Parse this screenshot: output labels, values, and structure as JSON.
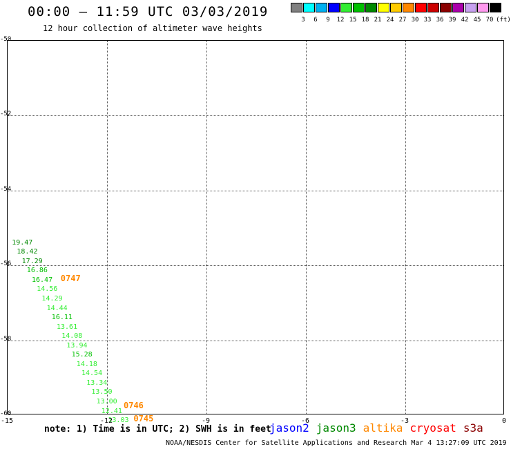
{
  "title": "00:00 – 11:59 UTC 03/03/2019",
  "subtitle": "12 hour collection of altimeter wave heights",
  "scale": {
    "colors": [
      "#808080",
      "#00ffff",
      "#00b0f0",
      "#0000ff",
      "#33ee33",
      "#00c000",
      "#008800",
      "#ffff00",
      "#ffcc00",
      "#ff8800",
      "#ff0000",
      "#cc0000",
      "#8b0000",
      "#aa00aa",
      "#c7a0f0",
      "#ff99ee",
      "#000000"
    ],
    "labels": [
      "3",
      "6",
      "9",
      "12",
      "15",
      "18",
      "21",
      "24",
      "27",
      "30",
      "33",
      "36",
      "39",
      "42",
      "45",
      "70"
    ],
    "unit": "(ft)"
  },
  "axes": {
    "lon_ticks": [
      "-15",
      "-12",
      "-9",
      "-6",
      "-3",
      "0"
    ],
    "lat_ticks": [
      "-50",
      "-52",
      "-54",
      "-56",
      "-58",
      "-60"
    ]
  },
  "map_data": {
    "lon_range": [
      -15,
      0
    ],
    "lat_range": [
      -60,
      -50
    ],
    "observations": [
      {
        "value": "19.47",
        "lon": -14.85,
        "lat": -55.4,
        "color": "#008800"
      },
      {
        "value": "18.42",
        "lon": -14.7,
        "lat": -55.65,
        "color": "#008800"
      },
      {
        "value": "17.29",
        "lon": -14.55,
        "lat": -55.9,
        "color": "#008800"
      },
      {
        "value": "16.86",
        "lon": -14.4,
        "lat": -56.15,
        "color": "#00c000"
      },
      {
        "value": "16.47",
        "lon": -14.25,
        "lat": -56.4,
        "color": "#00c000"
      },
      {
        "value": "14.56",
        "lon": -14.1,
        "lat": -56.65,
        "color": "#33ee33"
      },
      {
        "value": "14.29",
        "lon": -13.95,
        "lat": -56.9,
        "color": "#33ee33"
      },
      {
        "value": "14.44",
        "lon": -13.8,
        "lat": -57.15,
        "color": "#33ee33"
      },
      {
        "value": "16.11",
        "lon": -13.65,
        "lat": -57.4,
        "color": "#00c000"
      },
      {
        "value": "13.61",
        "lon": -13.5,
        "lat": -57.65,
        "color": "#33ee33"
      },
      {
        "value": "14.08",
        "lon": -13.35,
        "lat": -57.9,
        "color": "#33ee33"
      },
      {
        "value": "13.94",
        "lon": -13.2,
        "lat": -58.15,
        "color": "#33ee33"
      },
      {
        "value": "15.28",
        "lon": -13.05,
        "lat": -58.4,
        "color": "#00c000"
      },
      {
        "value": "14.18",
        "lon": -12.9,
        "lat": -58.65,
        "color": "#33ee33"
      },
      {
        "value": "14.54",
        "lon": -12.75,
        "lat": -58.9,
        "color": "#33ee33"
      },
      {
        "value": "13.34",
        "lon": -12.6,
        "lat": -59.15,
        "color": "#33ee33"
      },
      {
        "value": "13.50",
        "lon": -12.45,
        "lat": -59.4,
        "color": "#33ee33"
      },
      {
        "value": "13.00",
        "lon": -12.3,
        "lat": -59.65,
        "color": "#33ee33"
      },
      {
        "value": "12.41",
        "lon": -12.15,
        "lat": -59.9,
        "color": "#33ee33"
      },
      {
        "value": "13.03",
        "lon": -11.95,
        "lat": -60.15,
        "color": "#33ee33"
      }
    ],
    "times": [
      {
        "value": "0747",
        "lon": -13.4,
        "lat": -56.35,
        "color": "#ff8800"
      },
      {
        "value": "0746",
        "lon": -11.5,
        "lat": -59.75,
        "color": "#ff8800"
      },
      {
        "value": "0745",
        "lon": -11.2,
        "lat": -60.1,
        "color": "#ff8800"
      }
    ]
  },
  "note": "note:  1) Time is in UTC;  2) SWH is in feet",
  "legend": [
    {
      "name": "jason2",
      "color": "#0000ff"
    },
    {
      "name": "jason3",
      "color": "#008800"
    },
    {
      "name": "altika",
      "color": "#ff8800"
    },
    {
      "name": "cryosat",
      "color": "#ff0000"
    },
    {
      "name": "s3a",
      "color": "#8b0000"
    }
  ],
  "credit": "NOAA/NESDIS Center for Satellite Applications and Research    Mar  4 13:27:09 UTC 2019"
}
